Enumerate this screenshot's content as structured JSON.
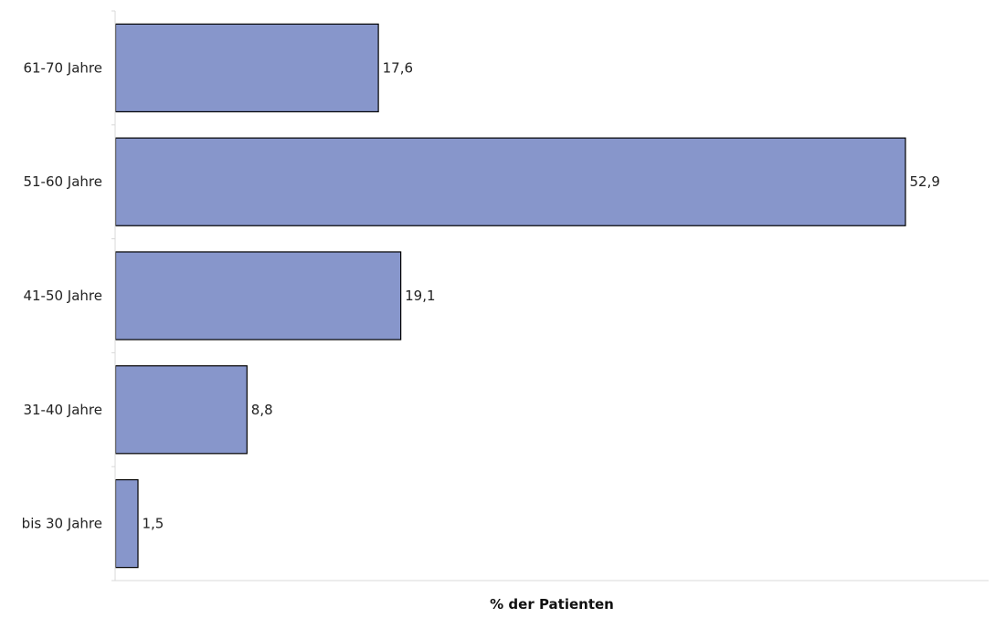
{
  "chart_data": {
    "type": "bar",
    "orientation": "horizontal",
    "categories": [
      "61-70 Jahre",
      "51-60 Jahre",
      "41-50 Jahre",
      "31-40 Jahre",
      "bis 30 Jahre"
    ],
    "values": [
      17.6,
      52.9,
      19.1,
      8.8,
      1.5
    ],
    "value_labels": [
      "17,6",
      "52,9",
      "19,1",
      "8,8",
      "1,5"
    ],
    "xlabel": "% der Patienten",
    "ylabel": "",
    "xlim": [
      0,
      58.5
    ],
    "grid": false,
    "bar_color": "#8796cb",
    "bar_edge_color": "#000000"
  }
}
